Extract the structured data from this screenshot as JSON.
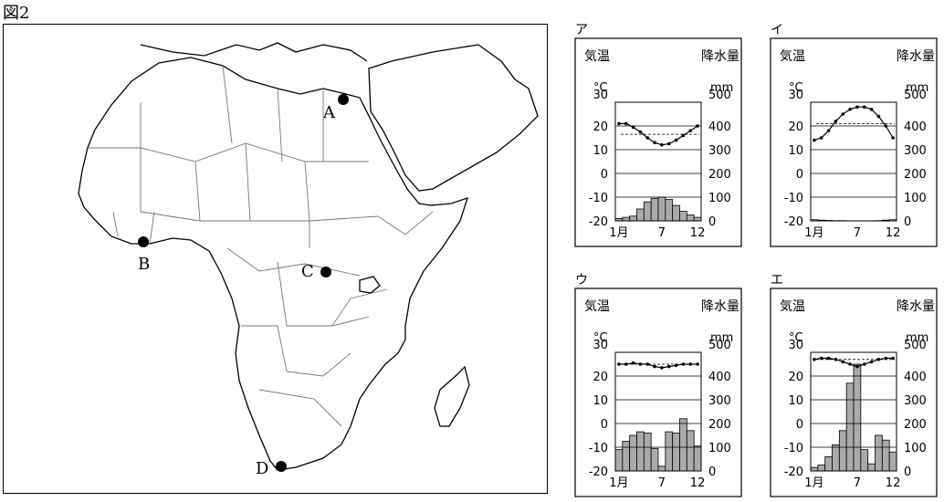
{
  "figure_label": "図2",
  "map": {
    "points": [
      {
        "label": "A",
        "location": "Cairo"
      },
      {
        "label": "B",
        "location": "Abidjan"
      },
      {
        "label": "C",
        "location": "Congo Basin"
      },
      {
        "label": "D",
        "location": "Cape Town"
      }
    ]
  },
  "climate_axes": {
    "temp_title": "気温",
    "temp_unit": "°C",
    "precip_title": "降水量",
    "precip_unit": "mm",
    "temp_ticks": [
      "30",
      "20",
      "10",
      "0",
      "-10",
      "-20"
    ],
    "precip_ticks": [
      "500",
      "400",
      "300",
      "200",
      "100",
      "0"
    ],
    "x_ticks": [
      "1月",
      "7",
      "12"
    ]
  },
  "chart_data": [
    {
      "type": "line+bar",
      "title": "ア",
      "temp_range": [
        -20,
        30
      ],
      "precip_range": [
        0,
        500
      ],
      "temperature": [
        21,
        21,
        19.5,
        17.5,
        15,
        13,
        12,
        12.5,
        14,
        16,
        18,
        20
      ],
      "annual_mean_temp": 16.5,
      "precipitation": [
        10,
        15,
        20,
        50,
        80,
        95,
        100,
        90,
        65,
        40,
        25,
        15
      ]
    },
    {
      "type": "line+bar",
      "title": "イ",
      "temp_range": [
        -20,
        30
      ],
      "precip_range": [
        0,
        500
      ],
      "temperature": [
        14,
        15,
        18,
        22,
        25,
        27,
        28,
        28,
        27,
        24,
        20,
        15
      ],
      "annual_mean_temp": 21,
      "precipitation": [
        5,
        3,
        2,
        1,
        1,
        0,
        0,
        0,
        0,
        1,
        3,
        5
      ]
    },
    {
      "type": "line+bar",
      "title": "ウ",
      "temp_range": [
        -20,
        30
      ],
      "precip_range": [
        0,
        500
      ],
      "temperature": [
        25,
        25,
        25.5,
        25,
        25,
        24,
        23.5,
        24,
        24.5,
        25,
        25,
        25
      ],
      "annual_mean_temp": 25,
      "precipitation": [
        90,
        125,
        150,
        165,
        160,
        95,
        20,
        165,
        160,
        220,
        170,
        105
      ]
    },
    {
      "type": "line+bar",
      "title": "エ",
      "temp_range": [
        -20,
        30
      ],
      "precip_range": [
        0,
        500
      ],
      "temperature": [
        27,
        27.5,
        27.5,
        27,
        26,
        25,
        24,
        25,
        26,
        27,
        27.5,
        27.5
      ],
      "annual_mean_temp": 27,
      "precipitation": [
        15,
        25,
        60,
        110,
        170,
        370,
        450,
        90,
        30,
        150,
        130,
        80
      ]
    }
  ]
}
